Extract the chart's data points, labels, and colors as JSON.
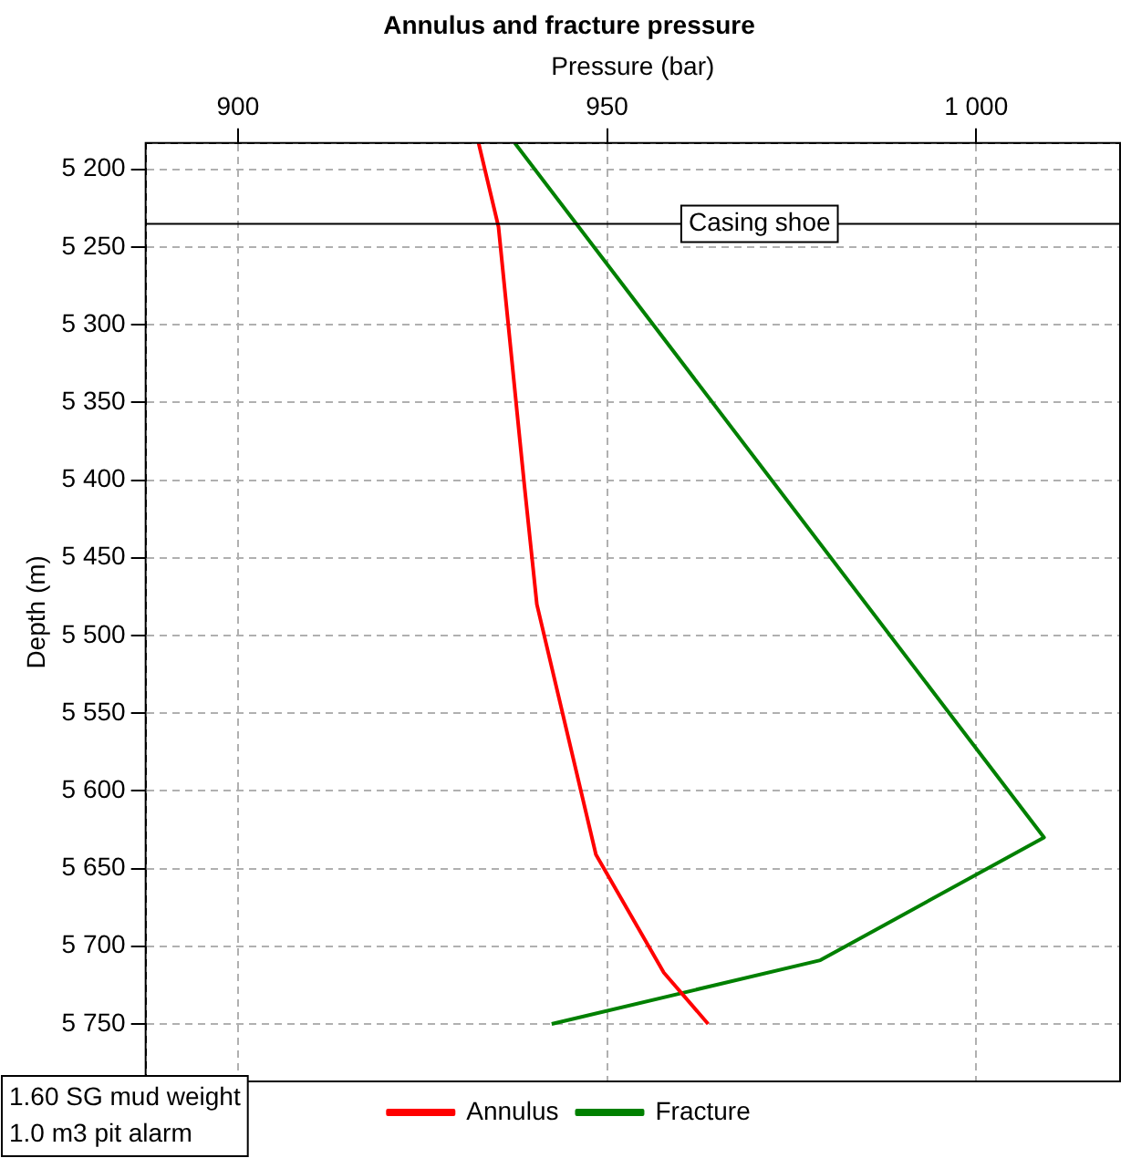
{
  "chart_data": {
    "type": "line",
    "title": "Annulus and fracture pressure",
    "xlabel": "Pressure (bar)",
    "ylabel": "Depth (m)",
    "xlim": [
      887.5,
      1019.5
    ],
    "xticks": [
      900,
      950,
      {
        "value": 1000,
        "label": "1 000"
      }
    ],
    "ylim": [
      5787,
      5183
    ],
    "yticks": [
      {
        "value": 5200,
        "label": "5 200"
      },
      {
        "value": 5250,
        "label": "5 250"
      },
      {
        "value": 5300,
        "label": "5 300"
      },
      {
        "value": 5350,
        "label": "5 350"
      },
      {
        "value": 5400,
        "label": "5 400"
      },
      {
        "value": 5450,
        "label": "5 450"
      },
      {
        "value": 5500,
        "label": "5 500"
      },
      {
        "value": 5550,
        "label": "5 550"
      },
      {
        "value": 5600,
        "label": "5 600"
      },
      {
        "value": 5650,
        "label": "5 650"
      },
      {
        "value": 5700,
        "label": "5 700"
      },
      {
        "value": 5750,
        "label": "5 750"
      }
    ],
    "series": [
      {
        "name": "Annulus",
        "color": "#ff0000",
        "x": [
          932.6,
          935.3,
          938.8,
          940.5,
          948.5,
          957.7,
          963.7
        ],
        "values": [
          5183,
          5237,
          5403,
          5480,
          5641,
          5717,
          5750
        ]
      },
      {
        "name": "Fracture",
        "color": "#008000",
        "x": [
          937.5,
          1009.2,
          978.9,
          942.5
        ],
        "values": [
          5183,
          5630,
          5709,
          5750
        ]
      }
    ],
    "ref_lines": [
      {
        "axis": "y",
        "value": 5235,
        "label": "Casing shoe",
        "color": "#000000"
      }
    ],
    "annotations": [
      "1.60 SG mud weight",
      "1.0 m3 pit alarm"
    ],
    "grid": true,
    "legend": "bottom",
    "line_style": "solid",
    "marker": "none"
  }
}
